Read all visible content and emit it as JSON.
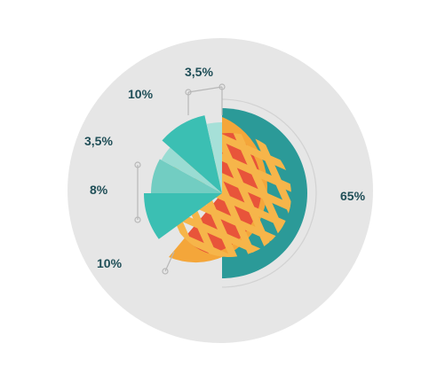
{
  "chart_data": {
    "type": "pie",
    "title": "",
    "categories": [
      "65%",
      "10%",
      "8%",
      "3,5%",
      "10%",
      "3,5%"
    ],
    "values": [
      65,
      10,
      8,
      3.5,
      10,
      3.5
    ],
    "labels": [
      "65%",
      "10%",
      "8%",
      "3,5%",
      "10%",
      "3,5%"
    ],
    "colors": {
      "background_disc": "#e6e6e6",
      "pie_plate": "#2b9a98",
      "pie_crust": "#f4a63a",
      "pie_filling": "#e8543a",
      "lattice": "#f6b54a",
      "slice_10_bottom": "#3bbfb3",
      "slice_8": "#72cdc2",
      "slice_3_5_lower": "#9adcd3",
      "slice_10_top": "#3bbfb3",
      "slice_3_5_top": "#a6e0d8",
      "marker_line": "#b7b7b7",
      "label_text": "#1f4e57"
    },
    "legend": "none"
  }
}
